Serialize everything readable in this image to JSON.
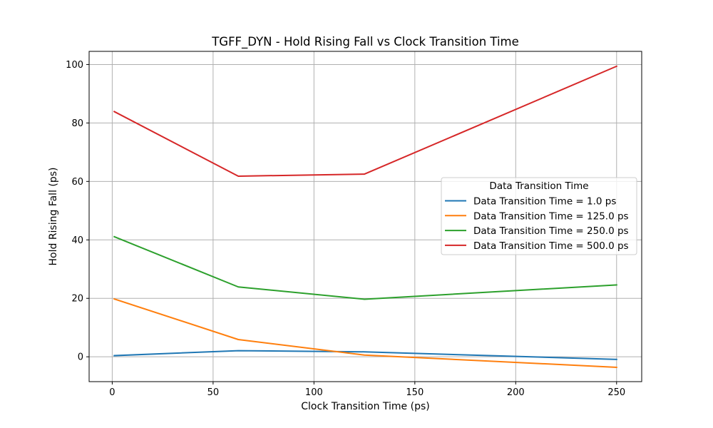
{
  "chart_data": {
    "type": "line",
    "title": "TGFF_DYN - Hold Rising Fall vs Clock Transition Time",
    "xlabel": "Clock Transition Time (ps)",
    "ylabel": "Hold Rising Fall (ps)",
    "xlim": [
      -11.45,
      262.45
    ],
    "ylim": [
      -8.5,
      104.5
    ],
    "xticks": [
      0,
      50,
      100,
      150,
      200,
      250
    ],
    "yticks": [
      0,
      20,
      40,
      60,
      80,
      100
    ],
    "grid": true,
    "x": [
      1.0,
      62.5,
      125.0,
      250.0
    ],
    "series": [
      {
        "name": "Data Transition Time = 1.0 ps",
        "color": "#1f77b4",
        "values": [
          0.4,
          2.1,
          1.7,
          -0.9
        ]
      },
      {
        "name": "Data Transition Time = 125.0 ps",
        "color": "#ff7f0e",
        "values": [
          19.8,
          5.9,
          0.6,
          -3.6
        ]
      },
      {
        "name": "Data Transition Time = 250.0 ps",
        "color": "#2ca02c",
        "values": [
          41.1,
          23.9,
          19.7,
          24.6
        ]
      },
      {
        "name": "Data Transition Time = 500.0 ps",
        "color": "#d62728",
        "values": [
          83.9,
          61.8,
          62.5,
          99.4
        ]
      }
    ],
    "legend": {
      "title": "Data Transition Time",
      "placement": "center-right"
    }
  }
}
